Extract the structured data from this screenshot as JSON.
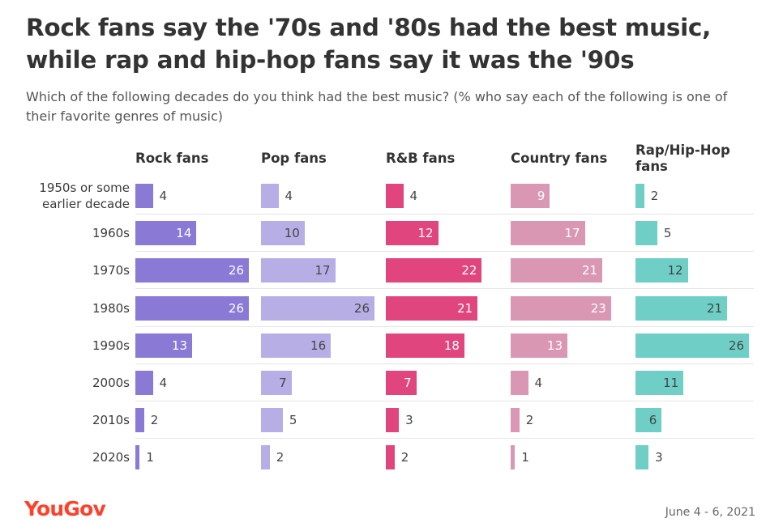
{
  "title": "Rock fans say the '70s and '80s had the best music, while rap and hip-hop fans say it was the '90s",
  "subtitle": "Which of the following decades do you think had the best music? (% who say each of the following is one of their favorite genres of music)",
  "footer": {
    "brand": "YouGov",
    "date": "June 4 - 6, 2021"
  },
  "chart_data": {
    "type": "bar",
    "orientation": "horizontal",
    "layout": "small-multiples",
    "title": "Rock fans say the '70s and '80s had the best music, while rap and hip-hop fans say it was the '90s",
    "categories": [
      "1950s or some earlier decade",
      "1960s",
      "1970s",
      "1980s",
      "1990s",
      "2000s",
      "2010s",
      "2020s"
    ],
    "xlim": [
      0,
      26
    ],
    "series": [
      {
        "name": "Rock fans",
        "color": "#8a7ad6",
        "inside_label": "light",
        "values": [
          4,
          14,
          26,
          26,
          13,
          4,
          2,
          1
        ]
      },
      {
        "name": "Pop fans",
        "color": "#b8aee6",
        "inside_label": "dark",
        "values": [
          4,
          10,
          17,
          26,
          16,
          7,
          5,
          2
        ]
      },
      {
        "name": "R&B fans",
        "color": "#e0457e",
        "inside_label": "light",
        "values": [
          4,
          12,
          22,
          21,
          18,
          7,
          3,
          2
        ]
      },
      {
        "name": "Country fans",
        "color": "#d997b3",
        "inside_label": "light",
        "values": [
          9,
          17,
          21,
          23,
          13,
          4,
          2,
          1
        ]
      },
      {
        "name": "Rap/Hip-Hop fans",
        "color": "#6fcfc6",
        "inside_label": "dark",
        "values": [
          2,
          5,
          12,
          21,
          26,
          11,
          6,
          3
        ]
      }
    ]
  }
}
